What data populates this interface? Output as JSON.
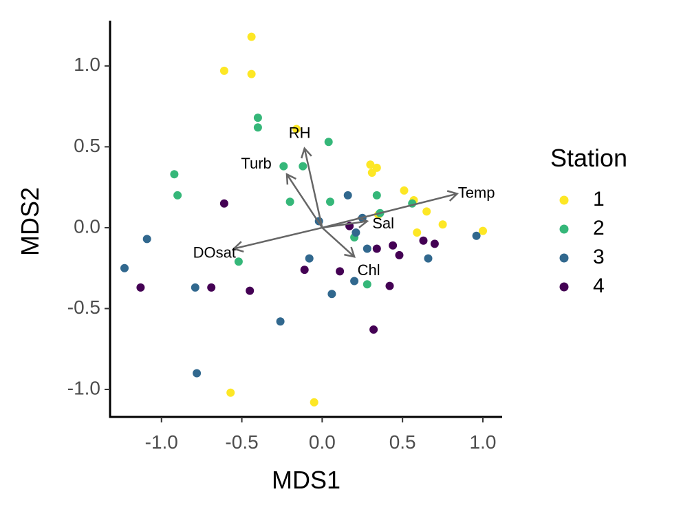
{
  "chart_data": {
    "type": "scatter",
    "title": "",
    "xlabel": "MDS1",
    "ylabel": "MDS2",
    "xlim": [
      -1.32,
      1.12
    ],
    "ylim": [
      -1.17,
      1.28
    ],
    "x_ticks": [
      -1.0,
      -0.5,
      0.0,
      0.5,
      1.0
    ],
    "x_tick_labels": [
      "-1.0",
      "-0.5",
      "0.0",
      "0.5",
      "1.0"
    ],
    "y_ticks": [
      -1.0,
      -0.5,
      0.0,
      0.5,
      1.0
    ],
    "y_tick_labels": [
      "-1.0",
      "-0.5",
      "0.0",
      "0.5",
      "1.0"
    ],
    "grid": false,
    "legend": {
      "title": "Station",
      "position": "right",
      "entries": [
        {
          "label": "1",
          "color": "#FDE725"
        },
        {
          "label": "2",
          "color": "#35B779"
        },
        {
          "label": "3",
          "color": "#31688E"
        },
        {
          "label": "4",
          "color": "#440154"
        }
      ]
    },
    "series": [
      {
        "name": "1",
        "color": "#FDE725",
        "points": [
          [
            -0.44,
            1.18
          ],
          [
            -0.61,
            0.97
          ],
          [
            -0.44,
            0.95
          ],
          [
            -0.16,
            0.61
          ],
          [
            0.3,
            0.39
          ],
          [
            0.34,
            0.37
          ],
          [
            0.31,
            0.34
          ],
          [
            0.51,
            0.23
          ],
          [
            0.57,
            0.17
          ],
          [
            0.65,
            0.1
          ],
          [
            0.59,
            -0.03
          ],
          [
            0.75,
            0.02
          ],
          [
            1.0,
            -0.02
          ],
          [
            -0.57,
            -1.02
          ],
          [
            -0.05,
            -1.08
          ],
          [
            0.35,
            0.08
          ]
        ]
      },
      {
        "name": "2",
        "color": "#35B779",
        "points": [
          [
            -0.4,
            0.68
          ],
          [
            -0.4,
            0.62
          ],
          [
            0.04,
            0.53
          ],
          [
            -0.92,
            0.33
          ],
          [
            -0.9,
            0.2
          ],
          [
            -0.24,
            0.38
          ],
          [
            -0.12,
            0.38
          ],
          [
            -0.2,
            0.16
          ],
          [
            0.05,
            0.16
          ],
          [
            0.34,
            0.2
          ],
          [
            0.56,
            0.15
          ],
          [
            0.2,
            -0.06
          ],
          [
            -0.52,
            -0.21
          ],
          [
            0.28,
            -0.35
          ],
          [
            0.36,
            0.09
          ]
        ]
      },
      {
        "name": "3",
        "color": "#31688E",
        "points": [
          [
            0.16,
            0.2
          ],
          [
            -0.02,
            0.04
          ],
          [
            0.25,
            0.06
          ],
          [
            0.21,
            -0.03
          ],
          [
            -1.09,
            -0.07
          ],
          [
            -1.23,
            -0.25
          ],
          [
            -0.08,
            -0.19
          ],
          [
            0.28,
            -0.13
          ],
          [
            0.96,
            -0.05
          ],
          [
            0.66,
            -0.19
          ],
          [
            -0.79,
            -0.37
          ],
          [
            0.2,
            -0.33
          ],
          [
            0.06,
            -0.41
          ],
          [
            -0.26,
            -0.58
          ],
          [
            -0.78,
            -0.9
          ]
        ]
      },
      {
        "name": "4",
        "color": "#440154",
        "points": [
          [
            -0.61,
            0.15
          ],
          [
            0.17,
            0.01
          ],
          [
            0.34,
            -0.13
          ],
          [
            0.44,
            -0.11
          ],
          [
            0.63,
            -0.08
          ],
          [
            0.7,
            -0.1
          ],
          [
            0.48,
            -0.17
          ],
          [
            -0.11,
            -0.26
          ],
          [
            0.11,
            -0.27
          ],
          [
            -1.13,
            -0.37
          ],
          [
            -0.69,
            -0.37
          ],
          [
            -0.45,
            -0.39
          ],
          [
            0.42,
            -0.36
          ],
          [
            0.32,
            -0.63
          ]
        ]
      }
    ],
    "vectors": [
      {
        "label": "RH",
        "x": -0.11,
        "y": 0.49,
        "label_x": -0.14,
        "label_y": 0.58
      },
      {
        "label": "Turb",
        "x": -0.22,
        "y": 0.33,
        "label_x": -0.41,
        "label_y": 0.39
      },
      {
        "label": "Temp",
        "x": 0.84,
        "y": 0.21,
        "label_x": 0.96,
        "label_y": 0.21
      },
      {
        "label": "Sal",
        "x": 0.28,
        "y": 0.04,
        "label_x": 0.38,
        "label_y": 0.02
      },
      {
        "label": "Chl",
        "x": 0.2,
        "y": -0.18,
        "label_x": 0.29,
        "label_y": -0.27
      },
      {
        "label": "DOsat",
        "x": -0.55,
        "y": -0.13,
        "label_x": -0.67,
        "label_y": -0.16
      }
    ],
    "vector_color": "#666666",
    "axis_color": "#000000"
  }
}
